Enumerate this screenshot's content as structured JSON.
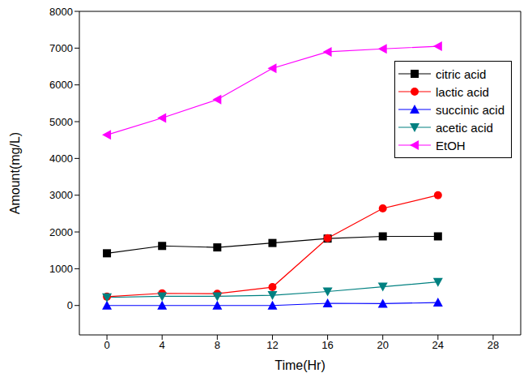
{
  "chart_data": {
    "type": "line",
    "x_label": "Time(Hr)",
    "y_label": "Amount(mg/L)",
    "x": [
      0,
      4,
      8,
      12,
      16,
      20,
      24
    ],
    "xlim": [
      -2,
      30
    ],
    "xticks": [
      0,
      4,
      8,
      12,
      16,
      20,
      24,
      28
    ],
    "ylim": [
      -800,
      8000
    ],
    "yticks": [
      0,
      1000,
      2000,
      3000,
      4000,
      5000,
      6000,
      7000,
      8000
    ],
    "grid": false,
    "legend": "upper right",
    "series": [
      {
        "name": "citric acid",
        "color": "#000000",
        "marker": "square",
        "values": [
          1420,
          1620,
          1580,
          1700,
          1820,
          1880,
          1880
        ]
      },
      {
        "name": "lactic acid",
        "color": "#ff0000",
        "marker": "circle",
        "values": [
          240,
          330,
          320,
          500,
          1830,
          2640,
          3000
        ]
      },
      {
        "name": "succinic acid",
        "color": "#0000ff",
        "marker": "triangle-up",
        "values": [
          0,
          0,
          0,
          0,
          60,
          50,
          80
        ]
      },
      {
        "name": "acetic acid",
        "color": "#008080",
        "marker": "triangle-down",
        "values": [
          220,
          250,
          250,
          280,
          380,
          510,
          640
        ]
      },
      {
        "name": "EtOH",
        "color": "#ff00ff",
        "marker": "triangle-left",
        "values": [
          4640,
          5100,
          5600,
          6450,
          6900,
          6980,
          7050
        ]
      }
    ]
  }
}
